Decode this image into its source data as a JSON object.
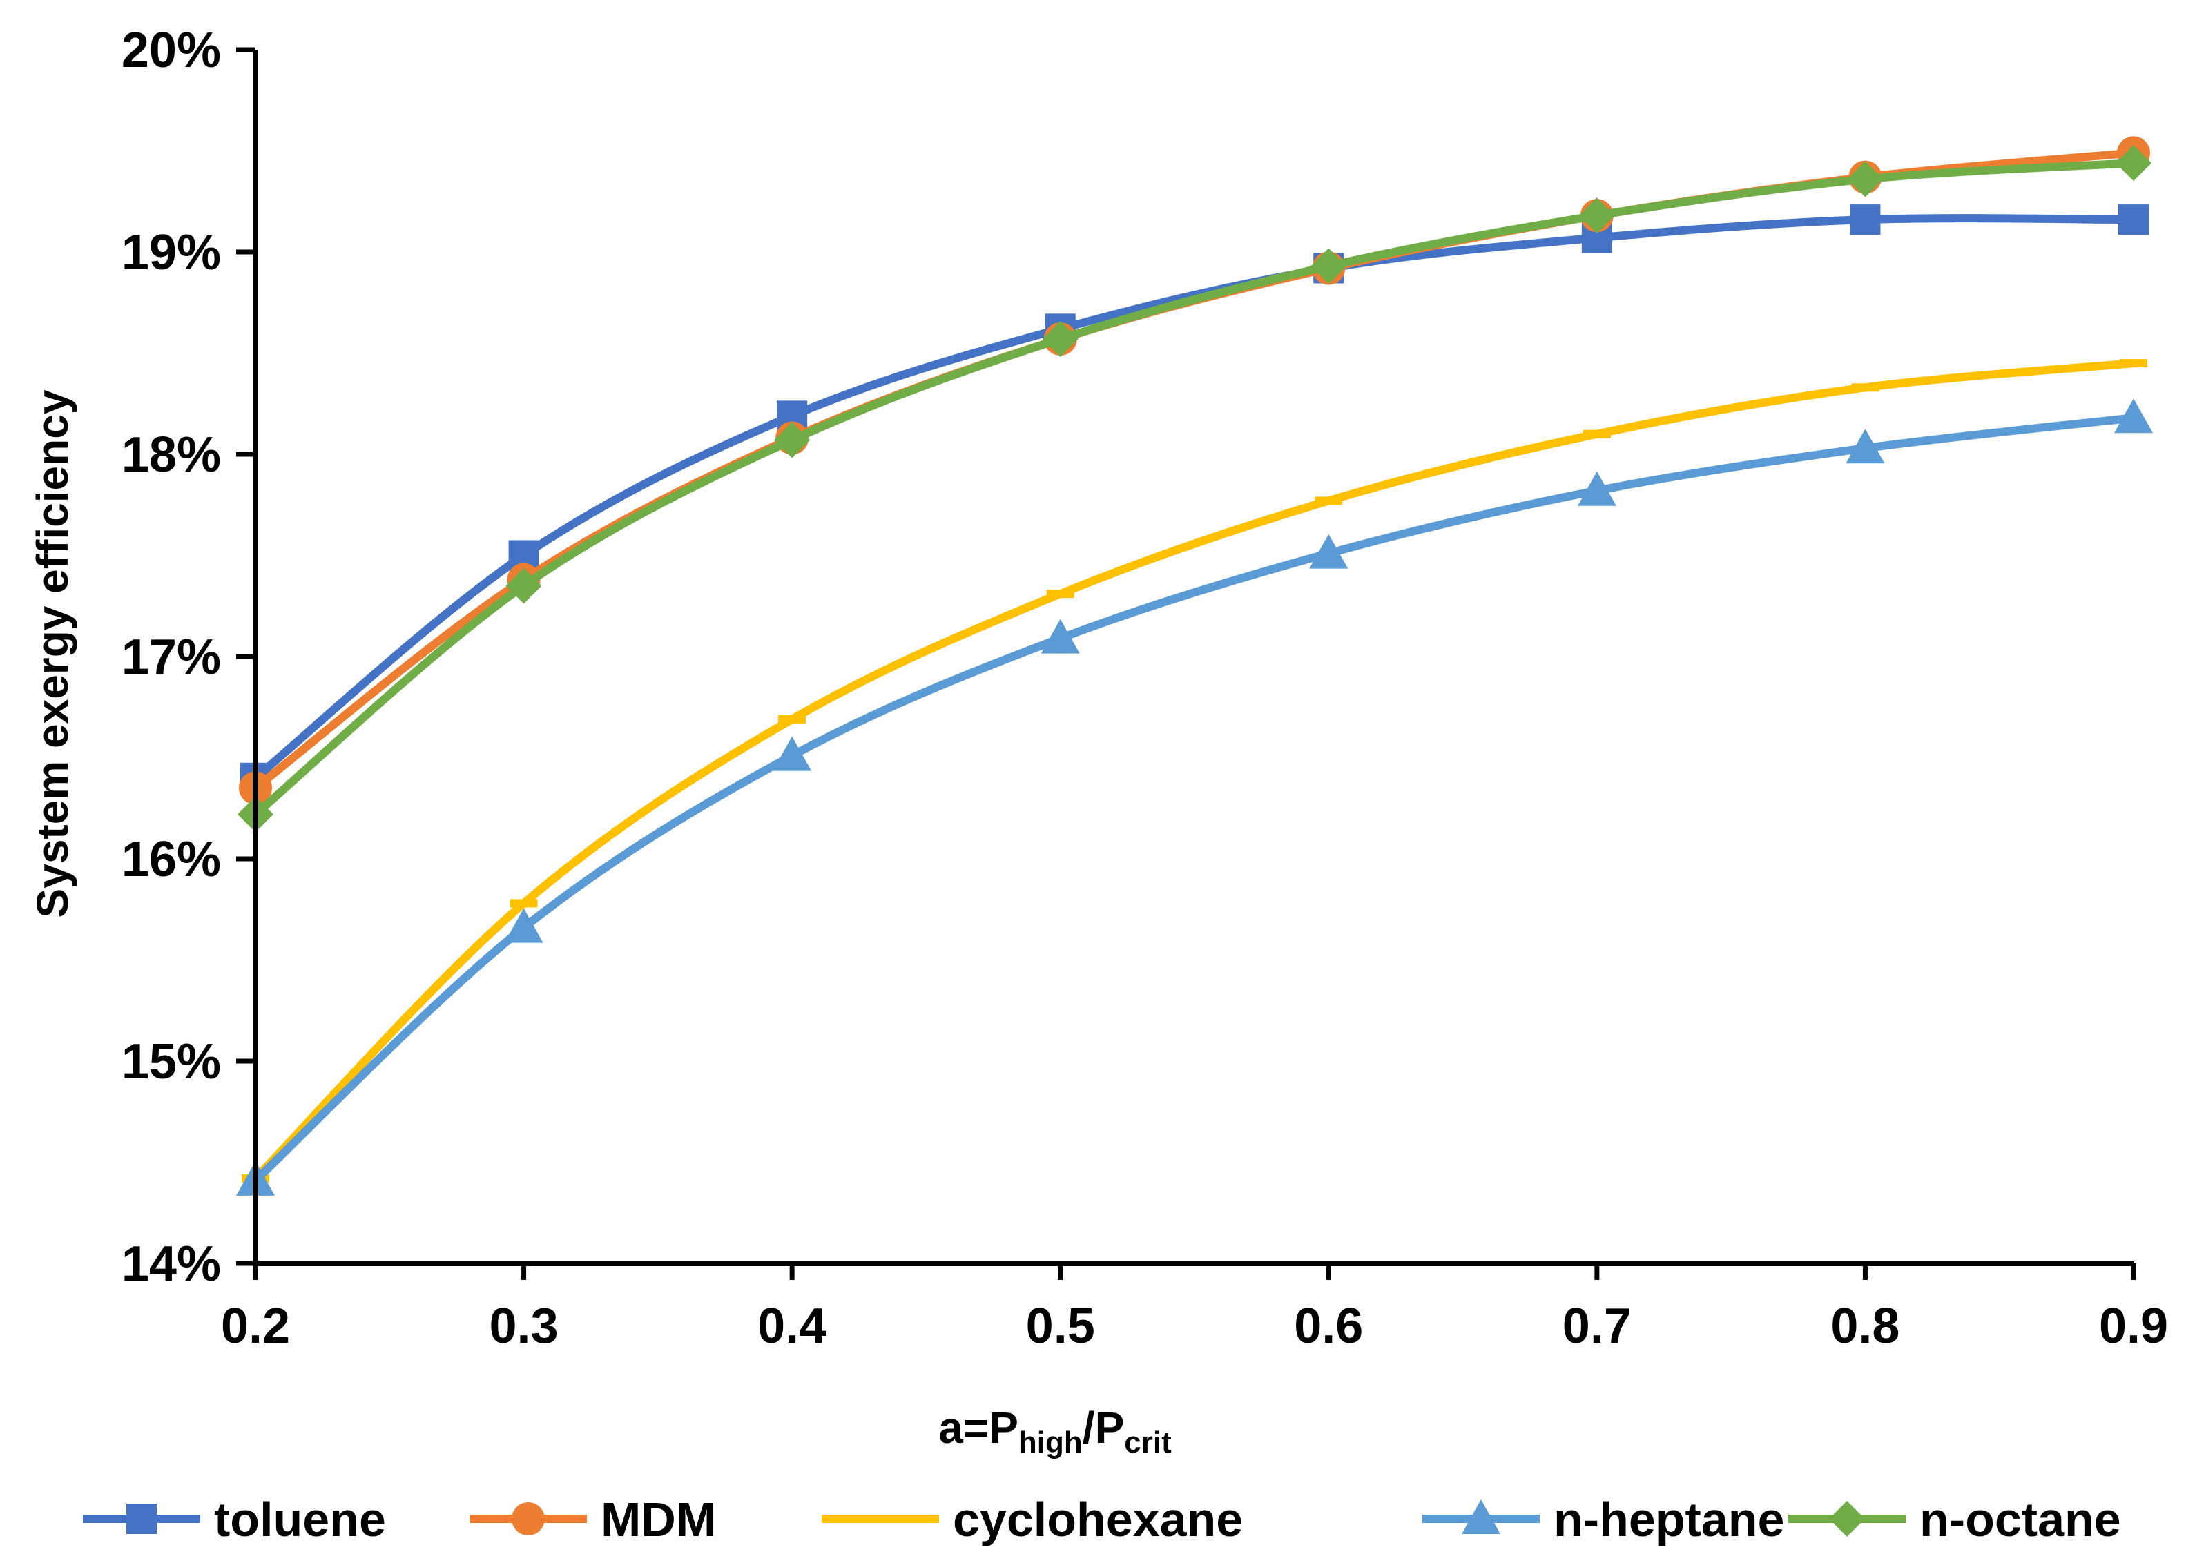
{
  "chart_data": {
    "type": "line",
    "x": [
      0.2,
      0.3,
      0.4,
      0.5,
      0.6,
      0.7,
      0.8,
      0.9
    ],
    "x_tick_labels": [
      "0.2",
      "0.3",
      "0.4",
      "0.5",
      "0.6",
      "0.7",
      "0.8",
      "0.9"
    ],
    "xlim": [
      0.2,
      0.9
    ],
    "y_tick_values": [
      0.14,
      0.15,
      0.16,
      0.17,
      0.18,
      0.19,
      0.2
    ],
    "y_tick_labels": [
      "14%",
      "15%",
      "16%",
      "17%",
      "18%",
      "19%",
      "20%"
    ],
    "ylim": [
      0.14,
      0.2
    ],
    "ylabel": "System exergy efficiency",
    "xlabel": {
      "main": "a=P",
      "sub1": "high",
      "slash": "/P",
      "sub2": "crit"
    },
    "grid": false,
    "legend_position": "bottom",
    "series": [
      {
        "name": "toluene",
        "color": "#4472C4",
        "marker": "square",
        "values": [
          0.164,
          0.175,
          0.1819,
          0.1862,
          0.1892,
          0.1907,
          0.1916,
          0.1916
        ]
      },
      {
        "name": "MDM",
        "color": "#ED7D31",
        "marker": "circle",
        "values": [
          0.1635,
          0.1738,
          0.1808,
          0.1857,
          0.1892,
          0.1918,
          0.1937,
          0.1949
        ]
      },
      {
        "name": "cyclohexane",
        "color": "#FFC000",
        "marker": "dash",
        "values": [
          0.1442,
          0.1578,
          0.1669,
          0.1731,
          0.1777,
          0.181,
          0.1833,
          0.1845
        ]
      },
      {
        "name": "n-heptane",
        "color": "#5B9BD5",
        "marker": "triangle",
        "values": [
          0.1441,
          0.1566,
          0.1651,
          0.1709,
          0.1751,
          0.1782,
          0.1803,
          0.1818
        ]
      },
      {
        "name": "n-octane",
        "color": "#70AD47",
        "marker": "diamond",
        "values": [
          0.1622,
          0.1735,
          0.1807,
          0.1857,
          0.1893,
          0.1918,
          0.1936,
          0.1944
        ]
      }
    ]
  }
}
